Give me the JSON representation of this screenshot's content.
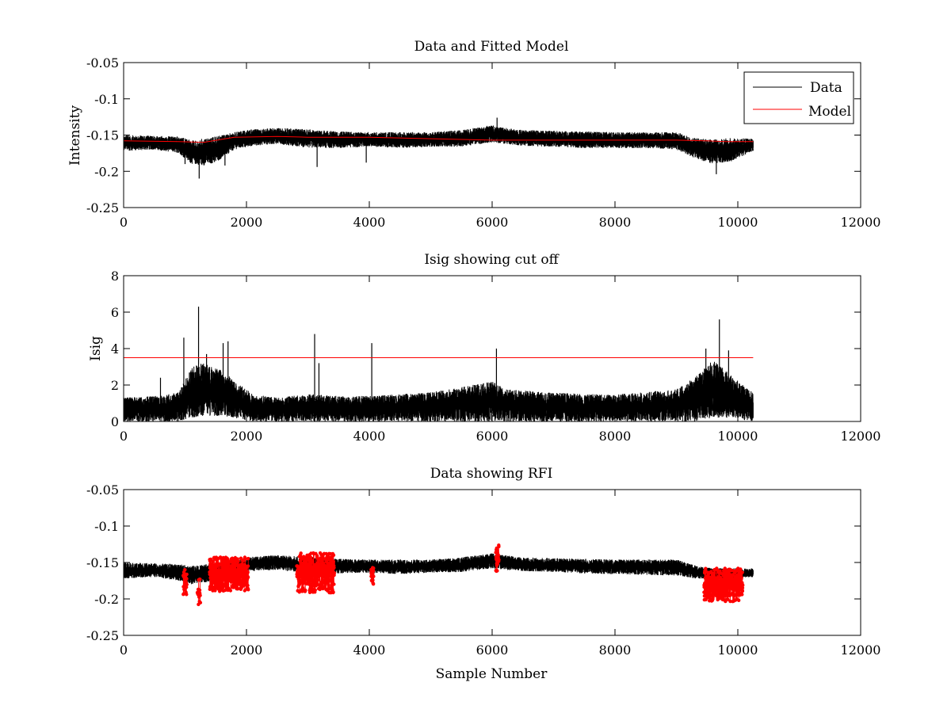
{
  "chart_data": [
    {
      "type": "line",
      "title": "Data and Fitted Model",
      "xlabel": "",
      "ylabel": "Intensity",
      "xlim": [
        0,
        12000
      ],
      "ylim": [
        -0.25,
        -0.05
      ],
      "xticks": [
        "0",
        "2000",
        "4000",
        "6000",
        "8000",
        "10000",
        "12000"
      ],
      "yticks": [
        "-0.25",
        "-0.2",
        "-0.15",
        "-0.1",
        "-0.05"
      ],
      "legend": {
        "placement": "top-right",
        "entries": [
          "Data",
          "Model"
        ]
      },
      "colors": {
        "Data": "#000000",
        "Model": "#ff0000"
      },
      "series": [
        {
          "name": "Data",
          "noise_band": {
            "x": [
              0,
              500,
              900,
              1100,
              1300,
              1500,
              1800,
              2100,
              2500,
              3000,
              3500,
              4000,
              4500,
              5000,
              5500,
              6000,
              6200,
              6500,
              7000,
              7500,
              8000,
              8500,
              9000,
              9300,
              9600,
              9900,
              10250
            ],
            "lower": [
              -0.172,
              -0.17,
              -0.175,
              -0.19,
              -0.192,
              -0.188,
              -0.17,
              -0.165,
              -0.162,
              -0.168,
              -0.168,
              -0.166,
              -0.168,
              -0.166,
              -0.166,
              -0.16,
              -0.162,
              -0.165,
              -0.166,
              -0.168,
              -0.168,
              -0.168,
              -0.17,
              -0.182,
              -0.19,
              -0.186,
              -0.172
            ],
            "upper": [
              -0.15,
              -0.151,
              -0.152,
              -0.157,
              -0.155,
              -0.152,
              -0.146,
              -0.142,
              -0.14,
              -0.142,
              -0.145,
              -0.146,
              -0.146,
              -0.146,
              -0.143,
              -0.136,
              -0.14,
              -0.143,
              -0.144,
              -0.145,
              -0.146,
              -0.146,
              -0.146,
              -0.154,
              -0.156,
              -0.154,
              -0.155
            ]
          },
          "spikes": [
            {
              "x": 1230,
              "y": -0.21
            },
            {
              "x": 3150,
              "y": -0.194
            },
            {
              "x": 3950,
              "y": -0.188
            },
            {
              "x": 6080,
              "y": -0.126
            },
            {
              "x": 9650,
              "y": -0.204
            },
            {
              "x": 1000,
              "y": -0.19
            },
            {
              "x": 1650,
              "y": -0.192
            }
          ]
        },
        {
          "name": "Model",
          "x": [
            0,
            900,
            1300,
            1800,
            2500,
            3000,
            4000,
            5000,
            6000,
            7000,
            8000,
            9000,
            9500,
            9800,
            10250
          ],
          "y": [
            -0.158,
            -0.159,
            -0.16,
            -0.153,
            -0.152,
            -0.153,
            -0.153,
            -0.155,
            -0.157,
            -0.157,
            -0.157,
            -0.157,
            -0.158,
            -0.159,
            -0.159
          ]
        }
      ]
    },
    {
      "type": "line",
      "title": "Isig showing cut off",
      "xlabel": "",
      "ylabel": "Isig",
      "xlim": [
        0,
        12000
      ],
      "ylim": [
        0,
        8
      ],
      "xticks": [
        "0",
        "2000",
        "4000",
        "6000",
        "8000",
        "10000",
        "12000"
      ],
      "yticks": [
        "0",
        "2",
        "4",
        "6",
        "8"
      ],
      "colors": {
        "Isig": "#000000",
        "cutoff": "#ff0000"
      },
      "series": [
        {
          "noise_band": {
            "x": [
              0,
              500,
              900,
              1100,
              1300,
              1500,
              1800,
              2100,
              2500,
              3000,
              3500,
              4000,
              4500,
              5000,
              5500,
              6000,
              6200,
              6500,
              7000,
              7500,
              8000,
              8500,
              9000,
              9300,
              9600,
              9900,
              10250
            ],
            "lower": [
              0,
              0,
              0,
              0.2,
              0.3,
              0.3,
              0.2,
              0,
              0,
              0,
              0,
              0,
              0,
              0,
              0,
              0,
              0,
              0,
              0,
              0,
              0,
              0,
              0,
              0,
              0.2,
              0.2,
              0
            ],
            "upper": [
              1.3,
              1.4,
              1.6,
              3.0,
              3.2,
              3.0,
              2.3,
              1.5,
              1.3,
              1.5,
              1.4,
              1.4,
              1.5,
              1.6,
              1.9,
              2.2,
              1.8,
              1.7,
              1.6,
              1.5,
              1.5,
              1.6,
              1.8,
              2.4,
              3.4,
              2.5,
              1.6
            ]
          },
          "spikes": [
            {
              "x": 980,
              "y": 4.6
            },
            {
              "x": 1220,
              "y": 6.3
            },
            {
              "x": 1350,
              "y": 3.7
            },
            {
              "x": 1620,
              "y": 4.3
            },
            {
              "x": 1700,
              "y": 4.4
            },
            {
              "x": 3110,
              "y": 4.8
            },
            {
              "x": 3180,
              "y": 3.2
            },
            {
              "x": 4040,
              "y": 4.3
            },
            {
              "x": 6070,
              "y": 4.0
            },
            {
              "x": 9480,
              "y": 4.0
            },
            {
              "x": 9700,
              "y": 5.6
            },
            {
              "x": 9850,
              "y": 3.9
            },
            {
              "x": 600,
              "y": 2.4
            }
          ]
        },
        {
          "x": [
            0,
            10250
          ],
          "y": [
            3.5,
            3.5
          ]
        }
      ]
    },
    {
      "type": "scatter",
      "title": "Data showing RFI",
      "xlabel": "Sample Number",
      "ylabel": "",
      "xlim": [
        0,
        12000
      ],
      "ylim": [
        -0.25,
        -0.05
      ],
      "xticks": [
        "0",
        "2000",
        "4000",
        "6000",
        "8000",
        "10000",
        "12000"
      ],
      "yticks": [
        "-0.25",
        "-0.2",
        "-0.15",
        "-0.1",
        "-0.05"
      ],
      "colors": {
        "data": "#000000",
        "rfi": "#ff0000"
      },
      "series": [
        {
          "noise_band": {
            "x": [
              0,
              500,
              900,
              1100,
              1300,
              1500,
              1800,
              2100,
              2500,
              3000,
              3500,
              4000,
              4500,
              5000,
              5500,
              6000,
              6200,
              6500,
              7000,
              7500,
              8000,
              8500,
              9000,
              9300,
              9600,
              9900,
              10250
            ],
            "lower": [
              -0.172,
              -0.17,
              -0.175,
              -0.18,
              -0.178,
              -0.175,
              -0.165,
              -0.162,
              -0.16,
              -0.165,
              -0.165,
              -0.164,
              -0.166,
              -0.164,
              -0.163,
              -0.158,
              -0.16,
              -0.162,
              -0.163,
              -0.165,
              -0.166,
              -0.167,
              -0.168,
              -0.172,
              -0.172,
              -0.172,
              -0.17
            ],
            "upper": [
              -0.15,
              -0.151,
              -0.152,
              -0.155,
              -0.153,
              -0.15,
              -0.146,
              -0.142,
              -0.14,
              -0.142,
              -0.145,
              -0.146,
              -0.146,
              -0.146,
              -0.143,
              -0.137,
              -0.14,
              -0.143,
              -0.144,
              -0.145,
              -0.146,
              -0.146,
              -0.146,
              -0.154,
              -0.158,
              -0.158,
              -0.158
            ]
          }
        },
        {
          "clusters": [
            {
              "x0": 970,
              "x1": 1030,
              "y0": -0.195,
              "y1": -0.16,
              "n": 30
            },
            {
              "x0": 1200,
              "x1": 1250,
              "y0": -0.21,
              "y1": -0.172,
              "n": 18
            },
            {
              "x0": 1400,
              "x1": 2030,
              "y0": -0.19,
              "y1": -0.142,
              "n": 480
            },
            {
              "x0": 2820,
              "x1": 3430,
              "y0": -0.192,
              "y1": -0.137,
              "n": 420
            },
            {
              "x0": 4030,
              "x1": 4070,
              "y0": -0.182,
              "y1": -0.148,
              "n": 30
            },
            {
              "x0": 6060,
              "x1": 6110,
              "y0": -0.162,
              "y1": -0.125,
              "n": 35
            },
            {
              "x0": 9450,
              "x1": 10080,
              "y0": -0.204,
              "y1": -0.158,
              "n": 480
            }
          ]
        }
      ]
    }
  ]
}
